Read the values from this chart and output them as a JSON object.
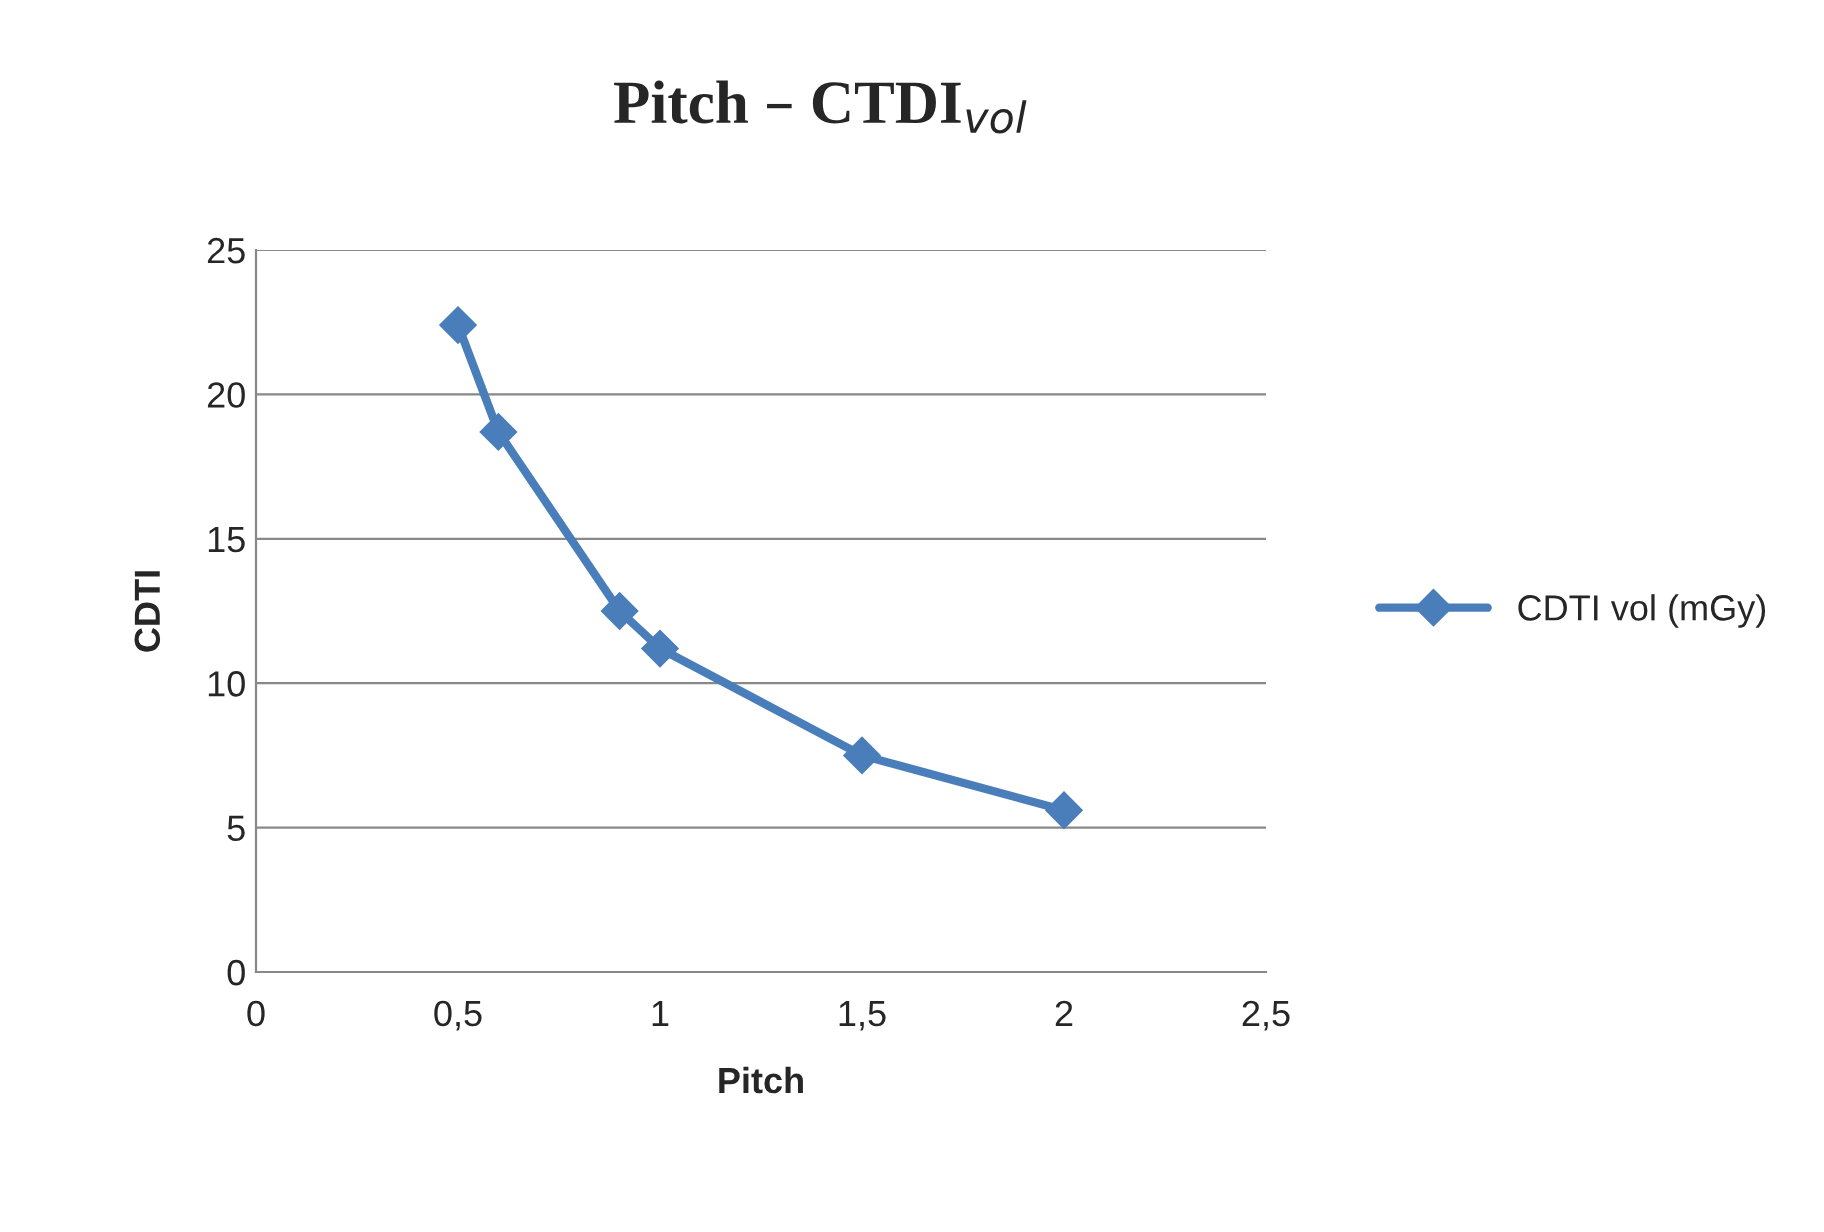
{
  "chart_data": {
    "type": "line",
    "title": "Pitch – CTDI$_{vol}$",
    "xlabel": "Pitch",
    "ylabel": "CDTI",
    "x": [
      0.5,
      0.6,
      0.9,
      1.0,
      1.5,
      2.0
    ],
    "series": [
      {
        "name": "CDTI vol (mGy)",
        "color": "#4a7ebb",
        "values": [
          22.4,
          18.7,
          12.5,
          11.2,
          7.5,
          5.6
        ]
      }
    ],
    "xlim": [
      0,
      2.5
    ],
    "xticks": [
      0,
      {
        "value": 0.5,
        "label": "0,5"
      },
      1,
      {
        "value": 1.5,
        "label": "1,5"
      },
      2,
      {
        "value": 2.5,
        "label": "2,5"
      }
    ],
    "ylim": [
      0,
      25
    ],
    "yticks": [
      0,
      5,
      10,
      15,
      20,
      25
    ],
    "grid": "y",
    "legend": "right",
    "marker": "diamond",
    "line_style": "solid"
  }
}
